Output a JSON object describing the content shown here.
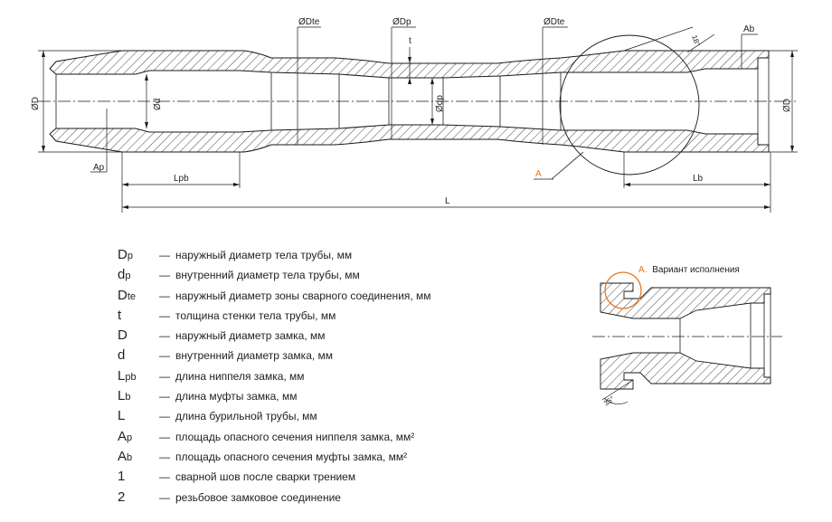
{
  "drawing": {
    "dimension_labels": {
      "dia_D_left": "ØD",
      "dia_d": "Ød",
      "dia_Dte_left": "ØDte",
      "dia_Dp": "ØDp",
      "t": "t",
      "dia_dp": "Ødp",
      "dia_Dte_right": "ØDte",
      "angle": "18°",
      "Ab": "Ab",
      "dia_D_right": "ØD",
      "Ap": "Ap",
      "Lpb": "Lpb",
      "Lb": "Lb",
      "L": "L",
      "callout_A": "A"
    },
    "detail": {
      "title_letter": "A.",
      "title_text": "Вариант исполнения",
      "angle": "35°"
    },
    "colors": {
      "line": "#1a1a1a",
      "callout": "#e87722"
    }
  },
  "legend": [
    {
      "sym": "Dp",
      "desc": "наружный диаметр тела трубы, мм"
    },
    {
      "sym": "dp",
      "desc": "внутренний диаметр тела трубы, мм"
    },
    {
      "sym": "Dte",
      "desc": "наружный диаметр зоны сварного соединения, мм"
    },
    {
      "sym": "t",
      "desc": "толщина стенки тела трубы, мм"
    },
    {
      "sym": "D",
      "desc": "наружный диаметр замка, мм"
    },
    {
      "sym": "d",
      "desc": "внутренний диаметр замка, мм"
    },
    {
      "sym": "Lpb",
      "desc": "длина ниппеля замка, мм"
    },
    {
      "sym": "Lb",
      "desc": "длина муфты замка, мм"
    },
    {
      "sym": "L",
      "desc": "длина бурильной трубы, мм"
    },
    {
      "sym": "Ap",
      "desc": "площадь опасного сечения ниппеля замка, мм²"
    },
    {
      "sym": "Ab",
      "desc": "площадь опасного сечения муфты замка, мм²"
    },
    {
      "sym": "1",
      "desc": "сварной шов после сварки трением"
    },
    {
      "sym": "2",
      "desc": "резьбовое замковое соединение"
    }
  ],
  "legend_dash": "—"
}
